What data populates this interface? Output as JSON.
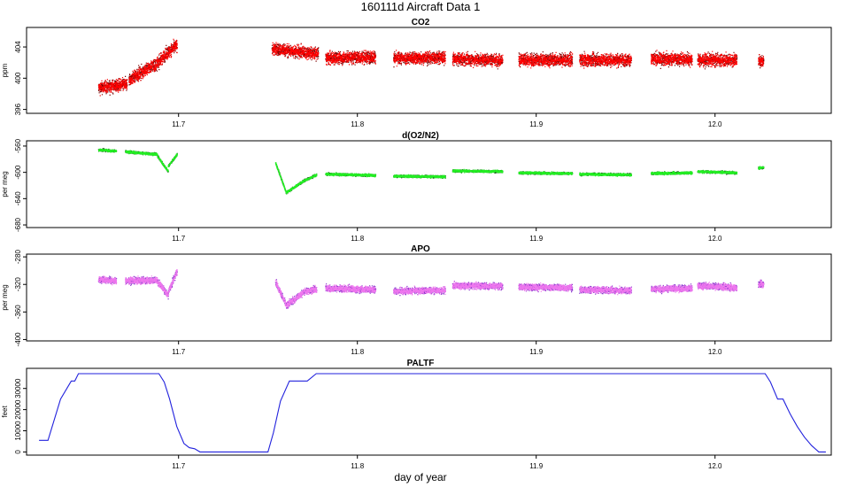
{
  "title": "160111d   Aircraft Data 1",
  "xlabel": "day of year",
  "x_ticks": [
    11.7,
    11.8,
    11.9,
    12.0
  ],
  "x_tick_labels": [
    "11.7",
    "11.8",
    "11.9",
    "12.0"
  ],
  "xlim": [
    11.615,
    12.065
  ],
  "colors": {
    "co2": "#ff0000",
    "co2_dark": "#7a0000",
    "o2": "#22ee22",
    "o2_dark": "#115511",
    "apo": "#ee77ee",
    "apo_dark": "#8833cc",
    "paltf": "#2222dd"
  },
  "chart_data": [
    {
      "type": "scatter",
      "title": "CO2",
      "ylabel": "ppm",
      "ylim": [
        395.5,
        406.5
      ],
      "y_ticks": [
        396,
        400,
        404
      ],
      "y_tick_labels": [
        "396",
        "400",
        "404"
      ],
      "noise": 0.75,
      "segments": [
        {
          "x": [
            11.655,
            11.671
          ],
          "y": [
            398.8,
            399.3
          ]
        },
        {
          "x": [
            11.672,
            11.686
          ],
          "y": [
            399.8,
            401.8
          ]
        },
        {
          "x": [
            11.686,
            11.692
          ],
          "y": [
            401.5,
            403.0
          ]
        },
        {
          "x": [
            11.692,
            11.699
          ],
          "y": [
            403.0,
            404.3
          ]
        },
        {
          "x": [
            11.752,
            11.778
          ],
          "y": [
            403.8,
            403.2
          ]
        },
        {
          "x": [
            11.782,
            11.81
          ],
          "y": [
            402.6,
            402.8
          ]
        },
        {
          "x": [
            11.82,
            11.849
          ],
          "y": [
            402.6,
            402.7
          ]
        },
        {
          "x": [
            11.853,
            11.881
          ],
          "y": [
            402.5,
            402.4
          ]
        },
        {
          "x": [
            11.89,
            11.92
          ],
          "y": [
            402.4,
            402.4
          ]
        },
        {
          "x": [
            11.924,
            11.953
          ],
          "y": [
            402.4,
            402.4
          ]
        },
        {
          "x": [
            11.964,
            11.987
          ],
          "y": [
            402.5,
            402.5
          ]
        },
        {
          "x": [
            11.99,
            12.012
          ],
          "y": [
            402.4,
            402.4
          ]
        },
        {
          "x": [
            12.024,
            12.027
          ],
          "y": [
            402.3,
            402.3
          ]
        }
      ]
    },
    {
      "type": "scatter",
      "title": "d(O2/N2)",
      "ylabel": "per meg",
      "ylim": [
        -684,
        -552
      ],
      "y_ticks": [
        -560,
        -600,
        -640,
        -680
      ],
      "y_tick_labels": [
        "-560",
        "-600",
        "-640",
        "-680"
      ],
      "noise": 1.8,
      "segments": [
        {
          "x": [
            11.655,
            11.665
          ],
          "y": [
            -565,
            -567
          ]
        },
        {
          "x": [
            11.67,
            11.688
          ],
          "y": [
            -568,
            -572
          ]
        },
        {
          "x": [
            11.688,
            11.694
          ],
          "y": [
            -575,
            -598
          ]
        },
        {
          "x": [
            11.694,
            11.699
          ],
          "y": [
            -590,
            -572
          ]
        },
        {
          "x": [
            11.754,
            11.76
          ],
          "y": [
            -585,
            -630
          ]
        },
        {
          "x": [
            11.76,
            11.77
          ],
          "y": [
            -630,
            -612
          ]
        },
        {
          "x": [
            11.77,
            11.777
          ],
          "y": [
            -612,
            -603
          ]
        },
        {
          "x": [
            11.782,
            11.81
          ],
          "y": [
            -602,
            -604
          ]
        },
        {
          "x": [
            11.82,
            11.849
          ],
          "y": [
            -605,
            -606
          ]
        },
        {
          "x": [
            11.853,
            11.881
          ],
          "y": [
            -597,
            -598
          ]
        },
        {
          "x": [
            11.89,
            11.92
          ],
          "y": [
            -600,
            -601
          ]
        },
        {
          "x": [
            11.924,
            11.953
          ],
          "y": [
            -602,
            -603
          ]
        },
        {
          "x": [
            11.964,
            11.987
          ],
          "y": [
            -601,
            -600
          ]
        },
        {
          "x": [
            11.99,
            12.012
          ],
          "y": [
            -598,
            -600
          ]
        },
        {
          "x": [
            12.024,
            12.027
          ],
          "y": [
            -593,
            -592
          ]
        }
      ]
    },
    {
      "type": "scatter",
      "title": "APO",
      "ylabel": "per meg",
      "ylim": [
        -402,
        -276
      ],
      "y_ticks": [
        -280,
        -320,
        -360,
        -400
      ],
      "y_tick_labels": [
        "-280",
        "-320",
        "-360",
        "-400"
      ],
      "noise": 4.5,
      "segments": [
        {
          "x": [
            11.655,
            11.665
          ],
          "y": [
            -312,
            -314
          ]
        },
        {
          "x": [
            11.67,
            11.688
          ],
          "y": [
            -314,
            -313
          ]
        },
        {
          "x": [
            11.688,
            11.694
          ],
          "y": [
            -315,
            -335
          ]
        },
        {
          "x": [
            11.694,
            11.699
          ],
          "y": [
            -330,
            -300
          ]
        },
        {
          "x": [
            11.754,
            11.76
          ],
          "y": [
            -315,
            -350
          ]
        },
        {
          "x": [
            11.76,
            11.77
          ],
          "y": [
            -350,
            -330
          ]
        },
        {
          "x": [
            11.77,
            11.777
          ],
          "y": [
            -330,
            -326
          ]
        },
        {
          "x": [
            11.782,
            11.81
          ],
          "y": [
            -325,
            -327
          ]
        },
        {
          "x": [
            11.82,
            11.849
          ],
          "y": [
            -329,
            -328
          ]
        },
        {
          "x": [
            11.853,
            11.881
          ],
          "y": [
            -321,
            -322
          ]
        },
        {
          "x": [
            11.89,
            11.92
          ],
          "y": [
            -323,
            -324
          ]
        },
        {
          "x": [
            11.924,
            11.953
          ],
          "y": [
            -327,
            -328
          ]
        },
        {
          "x": [
            11.964,
            11.987
          ],
          "y": [
            -326,
            -325
          ]
        },
        {
          "x": [
            11.99,
            12.012
          ],
          "y": [
            -321,
            -324
          ]
        },
        {
          "x": [
            12.024,
            12.027
          ],
          "y": [
            -319,
            -319
          ]
        }
      ]
    },
    {
      "type": "line",
      "title": "PALTF",
      "ylabel": "feet",
      "ylim": [
        -1500,
        39500
      ],
      "y_ticks": [
        0,
        10000,
        20000,
        30000
      ],
      "y_tick_labels": [
        "0",
        "10000",
        "20000",
        "30000"
      ],
      "x": [
        11.622,
        11.627,
        11.634,
        11.64,
        11.642,
        11.644,
        11.689,
        11.692,
        11.695,
        11.699,
        11.703,
        11.706,
        11.709,
        11.712,
        11.715,
        11.733,
        11.75,
        11.753,
        11.757,
        11.762,
        11.772,
        11.777,
        11.78,
        12.028,
        12.031,
        12.035,
        12.038,
        12.042,
        12.046,
        12.05,
        12.054,
        12.058,
        12.062
      ],
      "y": [
        5500,
        5500,
        25000,
        33500,
        33500,
        37000,
        37000,
        33000,
        25000,
        12000,
        4000,
        2000,
        1500,
        0,
        0,
        0,
        0,
        9000,
        24000,
        33500,
        33500,
        37000,
        37000,
        37000,
        33000,
        25000,
        25000,
        18000,
        12000,
        7000,
        3000,
        0,
        0
      ]
    }
  ]
}
